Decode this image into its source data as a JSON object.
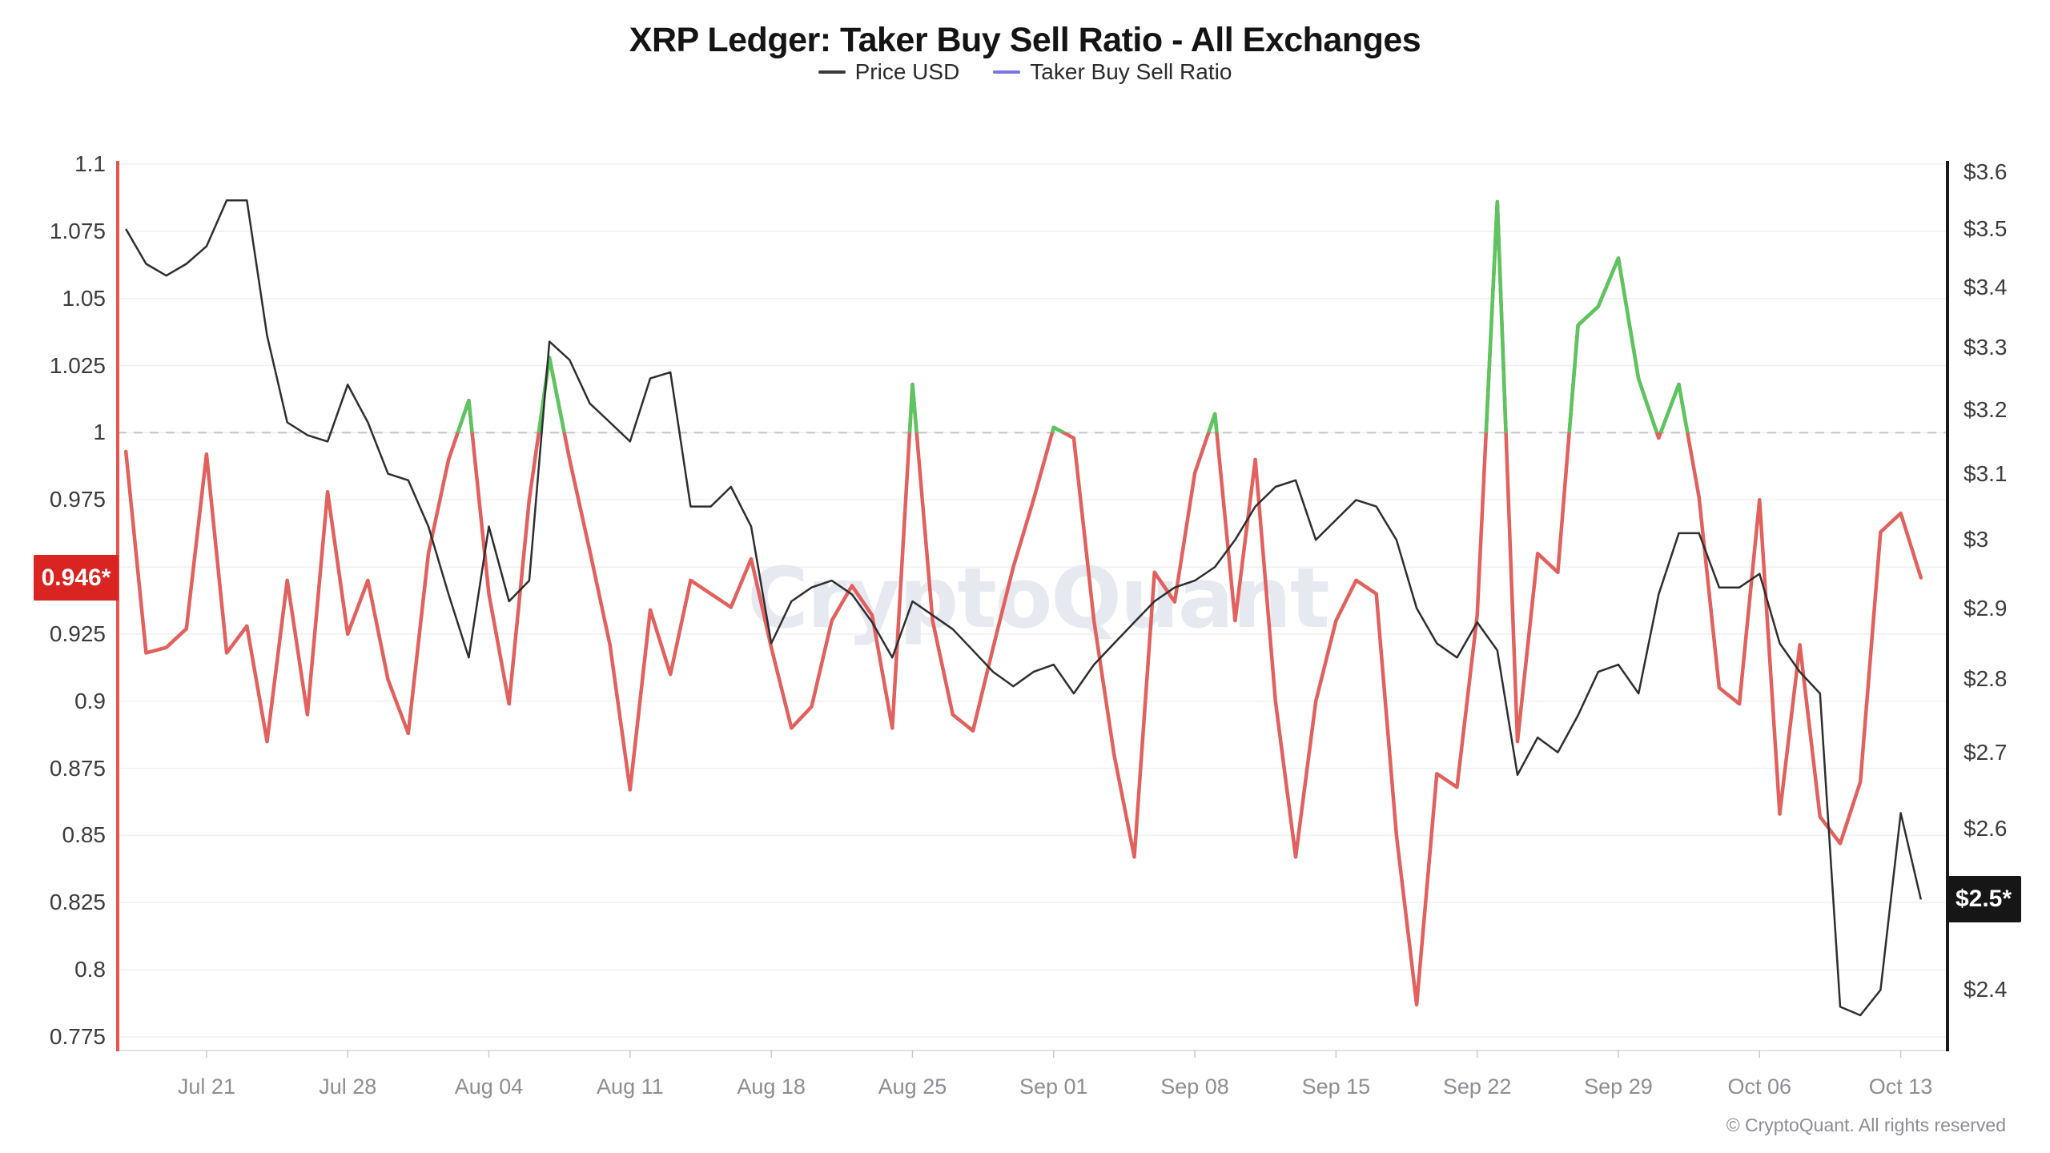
{
  "title": "XRP Ledger: Taker Buy Sell Ratio - All Exchanges",
  "legend": {
    "items": [
      {
        "label": "Price USD",
        "swatch_color": "#3a3a3a"
      },
      {
        "label": "Taker Buy Sell Ratio",
        "swatch_color": "#7e72e6"
      }
    ]
  },
  "watermark": "CryptoQuant",
  "copyright": "© CryptoQuant. All rights reserved",
  "badges": {
    "ratio_last": {
      "text": "0.946*",
      "bg": "#d92421",
      "value": 0.946
    },
    "price_last": {
      "text": "$2.5*",
      "bg": "#161616",
      "value": 2.51
    }
  },
  "axes": {
    "left": {
      "tick_labels": [
        "1.1",
        "1.075",
        "1.05",
        "1.025",
        "1",
        "0.975",
        "0.95",
        "0.925",
        "0.9",
        "0.875",
        "0.85",
        "0.825",
        "0.8",
        "0.775"
      ],
      "tick_values": [
        1.1,
        1.075,
        1.05,
        1.025,
        1,
        0.975,
        0.95,
        0.925,
        0.9,
        0.875,
        0.85,
        0.825,
        0.8,
        0.775
      ],
      "axis_line_color": "#e4554f"
    },
    "right": {
      "tick_labels": [
        "$3.6",
        "$3.5",
        "$3.4",
        "$3.3",
        "$3.2",
        "$3.1",
        "$3",
        "$2.9",
        "$2.8",
        "$2.7",
        "$2.6",
        "$2.5",
        "$2.4"
      ],
      "tick_values": [
        3.6,
        3.5,
        3.4,
        3.3,
        3.2,
        3.1,
        3,
        2.9,
        2.8,
        2.7,
        2.6,
        2.5,
        2.4
      ],
      "axis_line_color": "#1a1a1a"
    },
    "x": {
      "tick_labels": [
        "Jul 21",
        "Jul 28",
        "Aug 04",
        "Aug 11",
        "Aug 18",
        "Aug 25",
        "Sep 01",
        "Sep 08",
        "Sep 15",
        "Sep 22",
        "Sep 29",
        "Oct 06",
        "Oct 13"
      ],
      "tick_indices": [
        4,
        11,
        18,
        25,
        32,
        39,
        46,
        53,
        60,
        67,
        74,
        81,
        88
      ]
    }
  },
  "chart_data": {
    "type": "line",
    "title": "XRP Ledger: Taker Buy Sell Ratio - All Exchanges",
    "grid": "horizontal",
    "legend_position": "top",
    "baseline_dashed_at": 1,
    "left_ylim": [
      0.775,
      1.1
    ],
    "right_ylim": [
      2.4,
      3.6
    ],
    "right_axis_scale": "log",
    "x": [
      "Jul 17",
      "Jul 18",
      "Jul 19",
      "Jul 20",
      "Jul 21",
      "Jul 22",
      "Jul 23",
      "Jul 24",
      "Jul 25",
      "Jul 26",
      "Jul 27",
      "Jul 28",
      "Jul 29",
      "Jul 30",
      "Jul 31",
      "Aug 01",
      "Aug 02",
      "Aug 03",
      "Aug 04",
      "Aug 05",
      "Aug 06",
      "Aug 07",
      "Aug 08",
      "Aug 09",
      "Aug 10",
      "Aug 11",
      "Aug 12",
      "Aug 13",
      "Aug 14",
      "Aug 15",
      "Aug 16",
      "Aug 17",
      "Aug 18",
      "Aug 19",
      "Aug 20",
      "Aug 21",
      "Aug 22",
      "Aug 23",
      "Aug 24",
      "Aug 25",
      "Aug 26",
      "Aug 27",
      "Aug 28",
      "Aug 29",
      "Aug 30",
      "Aug 31",
      "Sep 01",
      "Sep 02",
      "Sep 03",
      "Sep 04",
      "Sep 05",
      "Sep 06",
      "Sep 07",
      "Sep 08",
      "Sep 09",
      "Sep 10",
      "Sep 11",
      "Sep 12",
      "Sep 13",
      "Sep 14",
      "Sep 15",
      "Sep 16",
      "Sep 17",
      "Sep 18",
      "Sep 19",
      "Sep 20",
      "Sep 21",
      "Sep 22",
      "Sep 23",
      "Sep 24",
      "Sep 25",
      "Sep 26",
      "Sep 27",
      "Sep 28",
      "Sep 29",
      "Sep 30",
      "Oct 01",
      "Oct 02",
      "Oct 03",
      "Oct 04",
      "Oct 05",
      "Oct 06",
      "Oct 07",
      "Oct 08",
      "Oct 09",
      "Oct 10",
      "Oct 11",
      "Oct 12",
      "Oct 13",
      "Oct 14"
    ],
    "series": [
      {
        "name": "Price USD",
        "axis": "right",
        "color": "#2e2e2e",
        "line_width": 2.5,
        "values": [
          3.5,
          3.44,
          3.42,
          3.44,
          3.47,
          3.55,
          3.55,
          3.32,
          3.18,
          3.16,
          3.15,
          3.24,
          3.18,
          3.1,
          3.09,
          3.02,
          2.92,
          2.83,
          3.02,
          2.91,
          2.94,
          3.31,
          3.28,
          3.21,
          3.18,
          3.15,
          3.25,
          3.26,
          3.05,
          3.05,
          3.08,
          3.02,
          2.85,
          2.91,
          2.93,
          2.94,
          2.92,
          2.88,
          2.83,
          2.91,
          2.89,
          2.87,
          2.84,
          2.81,
          2.79,
          2.81,
          2.82,
          2.78,
          2.82,
          2.85,
          2.88,
          2.91,
          2.93,
          2.94,
          2.96,
          3.0,
          3.05,
          3.08,
          3.09,
          3.0,
          3.03,
          3.06,
          3.05,
          3.0,
          2.9,
          2.85,
          2.83,
          2.88,
          2.84,
          2.67,
          2.72,
          2.7,
          2.75,
          2.81,
          2.82,
          2.78,
          2.92,
          3.01,
          3.01,
          2.93,
          2.93,
          2.95,
          2.85,
          2.81,
          2.78,
          2.38,
          2.37,
          2.4,
          2.62,
          2.51
        ]
      },
      {
        "name": "Taker Buy Sell Ratio",
        "axis": "left",
        "color_below_threshold": "#e2605d",
        "color_above_threshold": "#5bc55f",
        "threshold": 1,
        "line_width": 4.5,
        "values": [
          0.993,
          0.918,
          0.92,
          0.927,
          0.992,
          0.918,
          0.928,
          0.885,
          0.945,
          0.895,
          0.978,
          0.925,
          0.945,
          0.908,
          0.888,
          0.955,
          0.99,
          1.012,
          0.94,
          0.899,
          0.975,
          1.028,
          0.99,
          0.956,
          0.921,
          0.867,
          0.934,
          0.91,
          0.945,
          0.94,
          0.935,
          0.953,
          0.92,
          0.89,
          0.898,
          0.93,
          0.943,
          0.932,
          0.89,
          1.018,
          0.93,
          0.895,
          0.889,
          0.92,
          0.95,
          0.975,
          1.002,
          0.998,
          0.93,
          0.88,
          0.842,
          0.948,
          0.937,
          0.985,
          1.007,
          0.93,
          0.99,
          0.9,
          0.842,
          0.9,
          0.93,
          0.945,
          0.94,
          0.85,
          0.787,
          0.873,
          0.868,
          0.932,
          1.086,
          0.885,
          0.955,
          0.948,
          1.04,
          1.047,
          1.065,
          1.02,
          0.998,
          1.018,
          0.976,
          0.905,
          0.899,
          0.975,
          0.858,
          0.921,
          0.857,
          0.847,
          0.87,
          0.963,
          0.97,
          0.946
        ]
      }
    ]
  }
}
